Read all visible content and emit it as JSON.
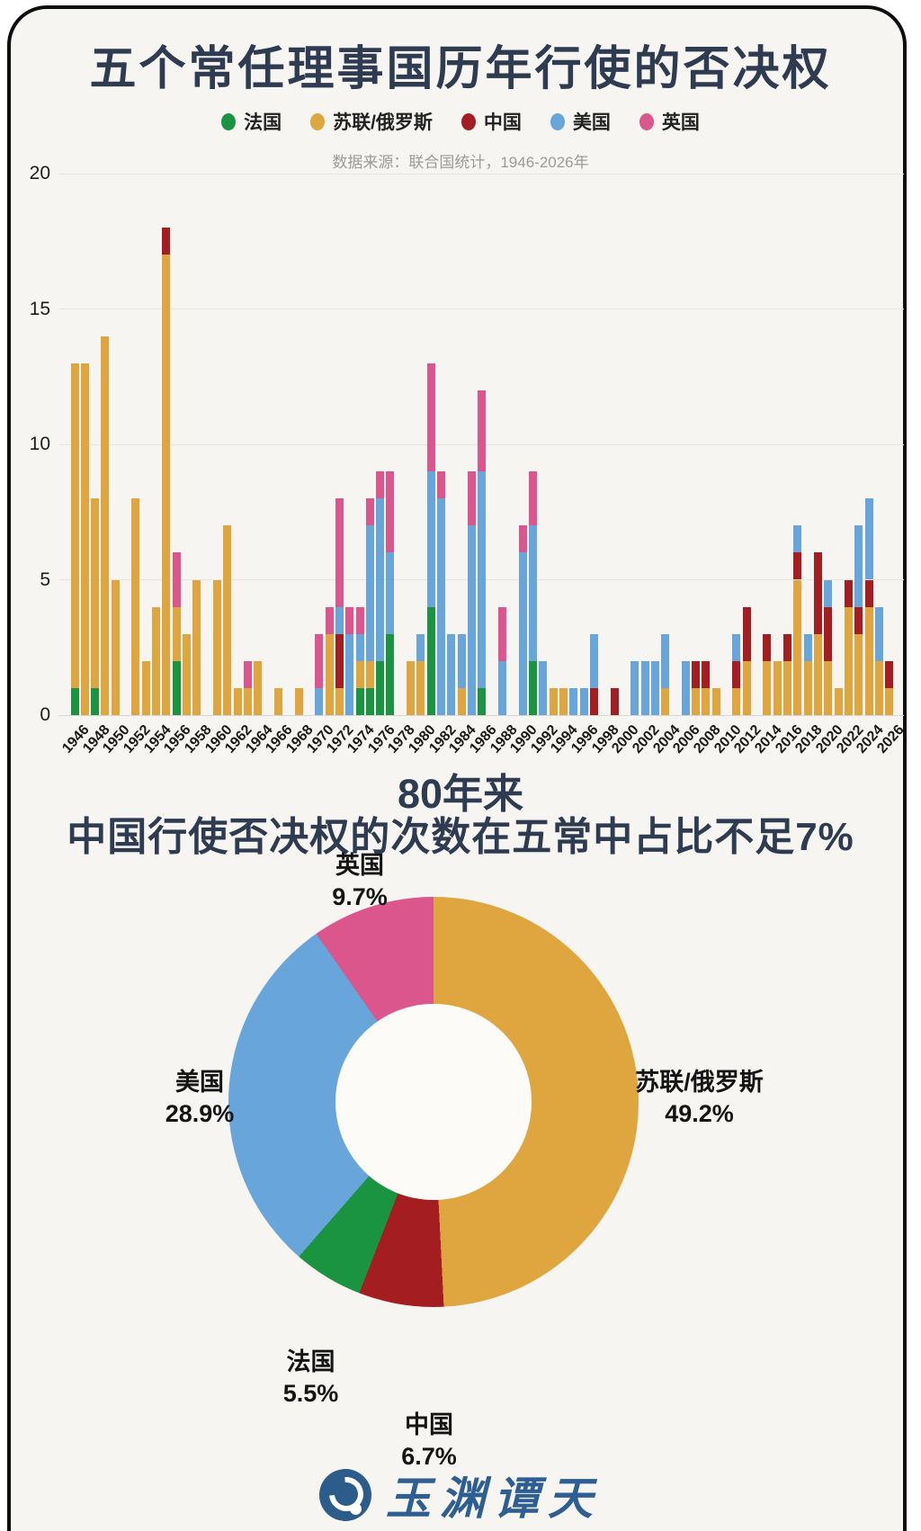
{
  "card": {
    "background": "#F6F5F1",
    "border_color": "#0d0d0d"
  },
  "colors": {
    "france": "#1A9440",
    "ussr_russia": "#DFA63F",
    "china": "#A31D21",
    "us": "#68A5DB",
    "uk": "#DA568C",
    "title_navy": "#2E3B50"
  },
  "bar_chart": {
    "title": "五个常任理事国历年行使的否决权",
    "source_note": "数据来源：联合国统计，1946-2026年",
    "legend": [
      {
        "label": "法国",
        "color": "#1A9440"
      },
      {
        "label": "苏联/俄罗斯",
        "color": "#DFA63F"
      },
      {
        "label": "中国",
        "color": "#A31D21"
      },
      {
        "label": "美国",
        "color": "#68A5DB"
      },
      {
        "label": "英国",
        "color": "#DA568C"
      }
    ]
  },
  "section2": {
    "title_line1": "80年来",
    "title_line2": "中国行使否决权的次数在五常中占比不足7%"
  },
  "donut": {
    "callouts": [
      {
        "label": "英国",
        "pct": "9.7%"
      },
      {
        "label": "苏联/俄罗斯",
        "pct": "49.2%"
      },
      {
        "label": "美国",
        "pct": "28.9%"
      },
      {
        "label": "法国",
        "pct": "5.5%"
      },
      {
        "label": "中国",
        "pct": "6.7%"
      }
    ]
  },
  "footer": {
    "logo_text": "玉渊谭天"
  },
  "chart_data": [
    {
      "type": "bar",
      "stacked": true,
      "title": "五个常任理事国历年行使的否决权",
      "xlabel": "",
      "ylabel": "",
      "ylim": [
        0,
        20
      ],
      "y_ticks": [
        0,
        5,
        10,
        15,
        20
      ],
      "grid": true,
      "x_start": 1946,
      "x_end": 2026,
      "x_tick_labels": [
        1946,
        1948,
        1950,
        1952,
        1954,
        1956,
        1958,
        1960,
        1962,
        1964,
        1966,
        1968,
        1970,
        1972,
        1974,
        1976,
        1978,
        1980,
        1982,
        1984,
        1986,
        1988,
        1990,
        1992,
        1994,
        1996,
        1998,
        2000,
        2002,
        2004,
        2006,
        2008,
        2010,
        2012,
        2014,
        2016,
        2018,
        2020,
        2022,
        2024,
        2026
      ],
      "series": [
        {
          "name": "法国",
          "key": "france",
          "color": "#1A9440",
          "values": [
            1,
            0,
            1,
            0,
            0,
            0,
            0,
            0,
            0,
            0,
            2,
            0,
            0,
            0,
            0,
            0,
            0,
            0,
            0,
            0,
            0,
            0,
            0,
            0,
            0,
            0,
            0,
            0,
            1,
            1,
            2,
            3,
            0,
            0,
            0,
            4,
            0,
            0,
            0,
            0,
            1,
            0,
            0,
            0,
            0,
            2,
            0,
            0,
            0,
            0,
            0,
            0,
            0,
            0,
            0,
            0,
            0,
            0,
            0,
            0,
            0,
            0,
            0,
            0,
            0,
            0,
            0,
            0,
            0,
            0,
            0,
            0,
            0,
            0,
            0,
            0,
            0,
            0,
            0,
            0,
            0
          ]
        },
        {
          "name": "苏联/俄罗斯",
          "key": "ussr",
          "color": "#DFA63F",
          "values": [
            12,
            13,
            7,
            14,
            5,
            0,
            8,
            2,
            4,
            17,
            2,
            3,
            5,
            0,
            5,
            7,
            1,
            1,
            2,
            0,
            1,
            0,
            1,
            0,
            0,
            3,
            1,
            0,
            1,
            1,
            0,
            0,
            0,
            2,
            2,
            0,
            0,
            0,
            1,
            0,
            0,
            0,
            0,
            0,
            0,
            0,
            0,
            1,
            1,
            0,
            0,
            0,
            0,
            0,
            0,
            0,
            0,
            0,
            1,
            0,
            0,
            1,
            1,
            1,
            0,
            1,
            2,
            0,
            2,
            2,
            2,
            5,
            2,
            3,
            2,
            1,
            4,
            3,
            4,
            2,
            1
          ]
        },
        {
          "name": "中国",
          "key": "china",
          "color": "#A31D21",
          "values": [
            0,
            0,
            0,
            0,
            0,
            0,
            0,
            0,
            0,
            1,
            0,
            0,
            0,
            0,
            0,
            0,
            0,
            0,
            0,
            0,
            0,
            0,
            0,
            0,
            0,
            0,
            2,
            0,
            0,
            0,
            0,
            0,
            0,
            0,
            0,
            0,
            0,
            0,
            0,
            0,
            0,
            0,
            0,
            0,
            0,
            0,
            0,
            0,
            0,
            0,
            0,
            1,
            0,
            1,
            0,
            0,
            0,
            0,
            0,
            0,
            0,
            1,
            1,
            0,
            0,
            1,
            2,
            0,
            1,
            0,
            1,
            1,
            0,
            3,
            2,
            0,
            1,
            1,
            1,
            0,
            1
          ]
        },
        {
          "name": "美国",
          "key": "us",
          "color": "#68A5DB",
          "values": [
            0,
            0,
            0,
            0,
            0,
            0,
            0,
            0,
            0,
            0,
            0,
            0,
            0,
            0,
            0,
            0,
            0,
            0,
            0,
            0,
            0,
            0,
            0,
            0,
            1,
            0,
            1,
            3,
            1,
            5,
            6,
            3,
            0,
            0,
            1,
            5,
            8,
            3,
            2,
            7,
            8,
            0,
            2,
            0,
            6,
            5,
            2,
            0,
            0,
            1,
            1,
            2,
            0,
            0,
            0,
            2,
            2,
            2,
            2,
            0,
            2,
            0,
            0,
            0,
            0,
            1,
            0,
            0,
            0,
            0,
            0,
            1,
            1,
            0,
            1,
            0,
            0,
            3,
            3,
            2,
            0
          ]
        },
        {
          "name": "英国",
          "key": "uk",
          "color": "#DA568C",
          "values": [
            0,
            0,
            0,
            0,
            0,
            0,
            0,
            0,
            0,
            0,
            2,
            0,
            0,
            0,
            0,
            0,
            0,
            1,
            0,
            0,
            0,
            0,
            0,
            0,
            2,
            1,
            4,
            1,
            1,
            1,
            1,
            3,
            0,
            0,
            0,
            4,
            1,
            0,
            0,
            2,
            3,
            0,
            2,
            0,
            1,
            2,
            0,
            0,
            0,
            0,
            0,
            0,
            0,
            0,
            0,
            0,
            0,
            0,
            0,
            0,
            0,
            0,
            0,
            0,
            0,
            0,
            0,
            0,
            0,
            0,
            0,
            0,
            0,
            0,
            0,
            0,
            0,
            0,
            0,
            0,
            0
          ]
        }
      ]
    },
    {
      "type": "pie",
      "title": "80年来中国行使否决权的次数在五常中占比不足7%",
      "donut": true,
      "clockwise_from_top": true,
      "slices": [
        {
          "label": "苏联/俄罗斯",
          "value": 49.2,
          "color": "#DFA63F"
        },
        {
          "label": "中国",
          "value": 6.7,
          "color": "#A31D21"
        },
        {
          "label": "法国",
          "value": 5.5,
          "color": "#1A9440"
        },
        {
          "label": "美国",
          "value": 28.9,
          "color": "#68A5DB"
        },
        {
          "label": "英国",
          "value": 9.7,
          "color": "#DA568C"
        }
      ]
    }
  ]
}
